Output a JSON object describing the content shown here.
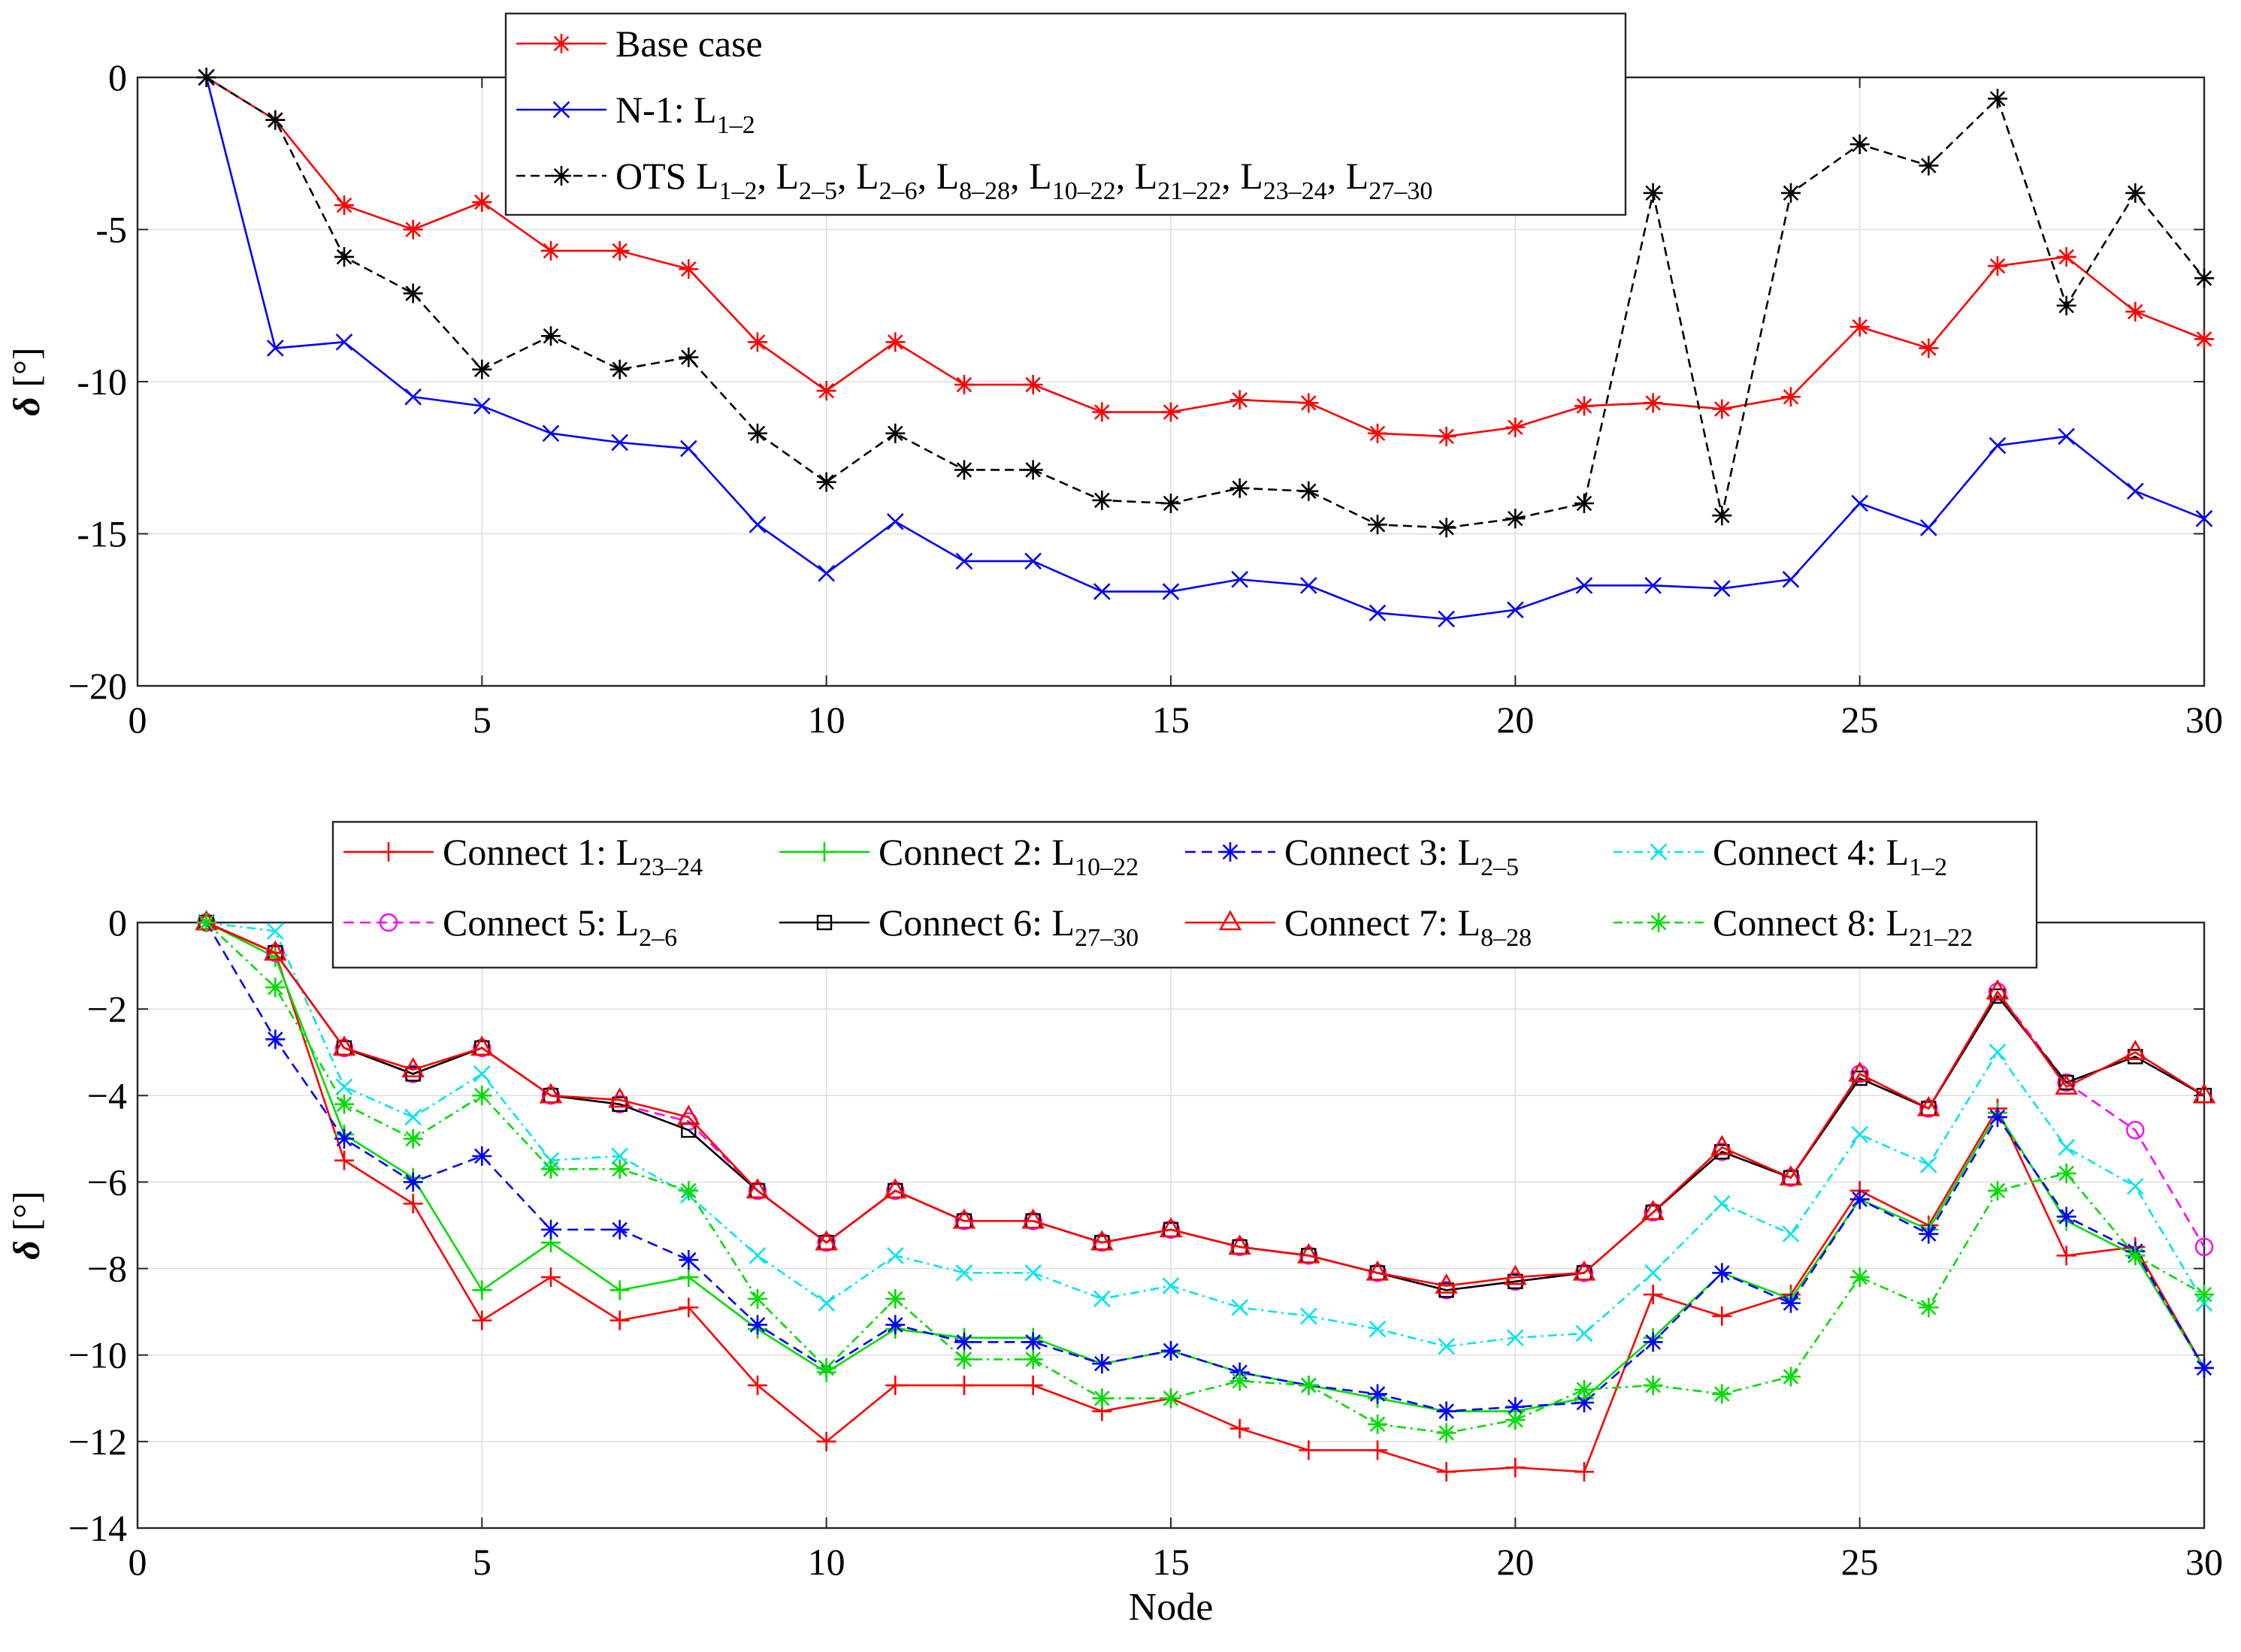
{
  "chart_data": [
    {
      "type": "line",
      "title": "",
      "xlabel": "",
      "ylabel": "δ [°]",
      "xlim": [
        0,
        30
      ],
      "ylim": [
        -20,
        0
      ],
      "xticks": [
        0,
        5,
        10,
        15,
        20,
        25,
        30
      ],
      "yticks": [
        0,
        -5,
        -10,
        -15,
        -20
      ],
      "ytick_labels": [
        "0",
        "-5",
        "-10",
        "-15",
        "−20"
      ],
      "grid": true,
      "legend_position": "top-center",
      "x": [
        1,
        2,
        3,
        4,
        5,
        6,
        7,
        8,
        9,
        10,
        11,
        12,
        13,
        14,
        15,
        16,
        17,
        18,
        19,
        20,
        21,
        22,
        23,
        24,
        25,
        26,
        27,
        28,
        29,
        30
      ],
      "series": [
        {
          "name": "Base case",
          "legend_main": "Base case",
          "legend_subs": [],
          "color": "#ff0000",
          "dash": "",
          "marker": "asterisk",
          "values": [
            0,
            -1.4,
            -4.2,
            -5.0,
            -4.1,
            -5.7,
            -5.7,
            -6.3,
            -8.7,
            -10.3,
            -8.7,
            -10.1,
            -10.1,
            -11.0,
            -11.0,
            -10.6,
            -10.7,
            -11.7,
            -11.8,
            -11.5,
            -10.8,
            -10.7,
            -10.9,
            -10.5,
            -8.2,
            -8.9,
            -6.2,
            -5.9,
            -7.7,
            -8.6
          ]
        },
        {
          "name": "N-1: L1-2",
          "legend_main": "N-1: L",
          "legend_subs": [
            "1–2"
          ],
          "color": "#0000ff",
          "dash": "",
          "marker": "x",
          "values": [
            0,
            -8.9,
            -8.7,
            -10.5,
            -10.8,
            -11.7,
            -12.0,
            -12.2,
            -14.7,
            -16.3,
            -14.6,
            -15.9,
            -15.9,
            -16.9,
            -16.9,
            -16.5,
            -16.7,
            -17.6,
            -17.8,
            -17.5,
            -16.7,
            -16.7,
            -16.8,
            -16.5,
            -14.0,
            -14.8,
            -12.1,
            -11.8,
            -13.6,
            -14.5
          ]
        },
        {
          "name": "OTS L1-2, L2-5, L2-6, L8-28, L10-22, L21-22, L23-24, L27-30",
          "legend_main": "OTS L",
          "legend_subs": [
            "1–2",
            "2–5",
            "2–6",
            "8–28",
            "10–22",
            "21–22",
            "23–24",
            "27–30"
          ],
          "color": "#000000",
          "dash": "12,7",
          "marker": "asterisk",
          "values": [
            0,
            -1.4,
            -5.9,
            -7.1,
            -9.6,
            -8.5,
            -9.6,
            -9.2,
            -11.7,
            -13.3,
            -11.7,
            -12.9,
            -12.9,
            -13.9,
            -14.0,
            -13.5,
            -13.6,
            -14.7,
            -14.8,
            -14.5,
            -14.0,
            -3.8,
            -14.4,
            -3.8,
            -2.2,
            -2.9,
            -0.7,
            -7.5,
            -3.8,
            -6.6
          ]
        }
      ]
    },
    {
      "type": "line",
      "title": "",
      "xlabel": "Node",
      "ylabel": "δ [°]",
      "xlim": [
        0,
        30
      ],
      "ylim": [
        -14,
        0
      ],
      "xticks": [
        0,
        5,
        10,
        15,
        20,
        25,
        30
      ],
      "yticks": [
        0,
        -2,
        -4,
        -6,
        -8,
        -10,
        -12,
        -14
      ],
      "ytick_labels": [
        "0",
        "−2",
        "−4",
        "−6",
        "−8",
        "−10",
        "−12",
        "−14"
      ],
      "grid": true,
      "legend_position": "top-center",
      "x": [
        1,
        2,
        3,
        4,
        5,
        6,
        7,
        8,
        9,
        10,
        11,
        12,
        13,
        14,
        15,
        16,
        17,
        18,
        19,
        20,
        21,
        22,
        23,
        24,
        25,
        26,
        27,
        28,
        29,
        30
      ],
      "series": [
        {
          "name": "Connect 1: L23-24",
          "legend_main": "Connect 1: L",
          "legend_subs": [
            "23–24"
          ],
          "color": "#ff0000",
          "dash": "",
          "marker": "plus",
          "values": [
            0,
            -0.7,
            -5.5,
            -6.5,
            -9.2,
            -8.2,
            -9.2,
            -8.9,
            -10.7,
            -12.0,
            -10.7,
            -10.7,
            -10.7,
            -11.3,
            -11.0,
            -11.7,
            -12.2,
            -12.2,
            -12.7,
            -12.6,
            -12.7,
            -8.6,
            -9.1,
            -8.6,
            -6.2,
            -7.0,
            -4.3,
            -7.7,
            -7.5,
            -10.3
          ]
        },
        {
          "name": "Connect 2: L10-22",
          "legend_main": "Connect 2: L",
          "legend_subs": [
            "10–22"
          ],
          "color": "#00dd00",
          "dash": "",
          "marker": "plus",
          "values": [
            0,
            -0.8,
            -4.9,
            -5.9,
            -8.5,
            -7.4,
            -8.5,
            -8.2,
            -9.4,
            -10.4,
            -9.4,
            -9.6,
            -9.6,
            -10.2,
            -9.9,
            -10.4,
            -10.7,
            -11.0,
            -11.3,
            -11.3,
            -11.0,
            -9.6,
            -8.1,
            -8.7,
            -6.4,
            -7.1,
            -4.4,
            -6.9,
            -7.7,
            -10.3
          ]
        },
        {
          "name": "Connect 3: L2-5",
          "legend_main": "Connect 3: L",
          "legend_subs": [
            "2–5"
          ],
          "color": "#0000ff",
          "dash": "14,8",
          "marker": "asterisk",
          "values": [
            0,
            -2.7,
            -5.0,
            -6.0,
            -5.4,
            -7.1,
            -7.1,
            -7.8,
            -9.3,
            -10.3,
            -9.3,
            -9.7,
            -9.7,
            -10.2,
            -9.9,
            -10.4,
            -10.7,
            -10.9,
            -11.3,
            -11.2,
            -11.1,
            -9.7,
            -8.1,
            -8.8,
            -6.4,
            -7.2,
            -4.5,
            -6.8,
            -7.6,
            -10.3
          ]
        },
        {
          "name": "Connect 4: L1-2",
          "legend_main": "Connect 4: L",
          "legend_subs": [
            "1–2"
          ],
          "color": "#00e5ee",
          "dash": "12,6,3,6",
          "marker": "x",
          "values": [
            0,
            -0.2,
            -3.8,
            -4.5,
            -3.5,
            -5.5,
            -5.4,
            -6.3,
            -7.7,
            -8.8,
            -7.7,
            -8.1,
            -8.1,
            -8.7,
            -8.4,
            -8.9,
            -9.1,
            -9.4,
            -9.8,
            -9.6,
            -9.5,
            -8.1,
            -6.5,
            -7.2,
            -4.9,
            -5.6,
            -3.0,
            -5.2,
            -6.1,
            -8.8
          ]
        },
        {
          "name": "Connect 5: L2-6",
          "legend_main": "Connect 5: L",
          "legend_subs": [
            "2–6"
          ],
          "color": "#ff00ff",
          "dash": "14,8",
          "marker": "circle",
          "values": [
            0,
            -0.7,
            -2.9,
            -3.5,
            -2.9,
            -4.0,
            -4.2,
            -4.6,
            -6.2,
            -7.4,
            -6.2,
            -6.9,
            -6.9,
            -7.4,
            -7.1,
            -7.5,
            -7.7,
            -8.1,
            -8.5,
            -8.3,
            -8.1,
            -6.7,
            -5.3,
            -5.9,
            -3.5,
            -4.3,
            -1.6,
            -3.7,
            -4.8,
            -7.5
          ]
        },
        {
          "name": "Connect 6: L27-30",
          "legend_main": "Connect 6: L",
          "legend_subs": [
            "27–30"
          ],
          "color": "#000000",
          "dash": "",
          "marker": "square",
          "values": [
            0,
            -0.7,
            -2.9,
            -3.5,
            -2.9,
            -4.0,
            -4.2,
            -4.8,
            -6.2,
            -7.4,
            -6.2,
            -6.9,
            -6.9,
            -7.4,
            -7.1,
            -7.5,
            -7.7,
            -8.1,
            -8.5,
            -8.3,
            -8.1,
            -6.7,
            -5.3,
            -5.9,
            -3.6,
            -4.3,
            -1.7,
            -3.7,
            -3.1,
            -4.0
          ]
        },
        {
          "name": "Connect 7: L8-28",
          "legend_main": "Connect 7: L",
          "legend_subs": [
            "8–28"
          ],
          "color": "#ff0000",
          "dash": "",
          "marker": "triangle",
          "values": [
            0,
            -0.7,
            -2.9,
            -3.4,
            -2.9,
            -4.0,
            -4.1,
            -4.5,
            -6.2,
            -7.4,
            -6.2,
            -6.9,
            -6.9,
            -7.4,
            -7.1,
            -7.5,
            -7.7,
            -8.1,
            -8.4,
            -8.2,
            -8.1,
            -6.7,
            -5.2,
            -5.9,
            -3.5,
            -4.3,
            -1.6,
            -3.8,
            -3.0,
            -4.0
          ]
        },
        {
          "name": "Connect 8: L21-22",
          "legend_main": "Connect 8: L",
          "legend_subs": [
            "21–22"
          ],
          "color": "#00dd00",
          "dash": "12,6,3,6",
          "marker": "asterisk",
          "values": [
            0,
            -1.5,
            -4.2,
            -5.0,
            -4.0,
            -5.7,
            -5.7,
            -6.2,
            -8.7,
            -10.3,
            -8.7,
            -10.1,
            -10.1,
            -11.0,
            -11.0,
            -10.6,
            -10.7,
            -11.6,
            -11.8,
            -11.5,
            -10.8,
            -10.7,
            -10.9,
            -10.5,
            -8.2,
            -8.9,
            -6.2,
            -5.8,
            -7.7,
            -8.6
          ]
        }
      ]
    }
  ]
}
